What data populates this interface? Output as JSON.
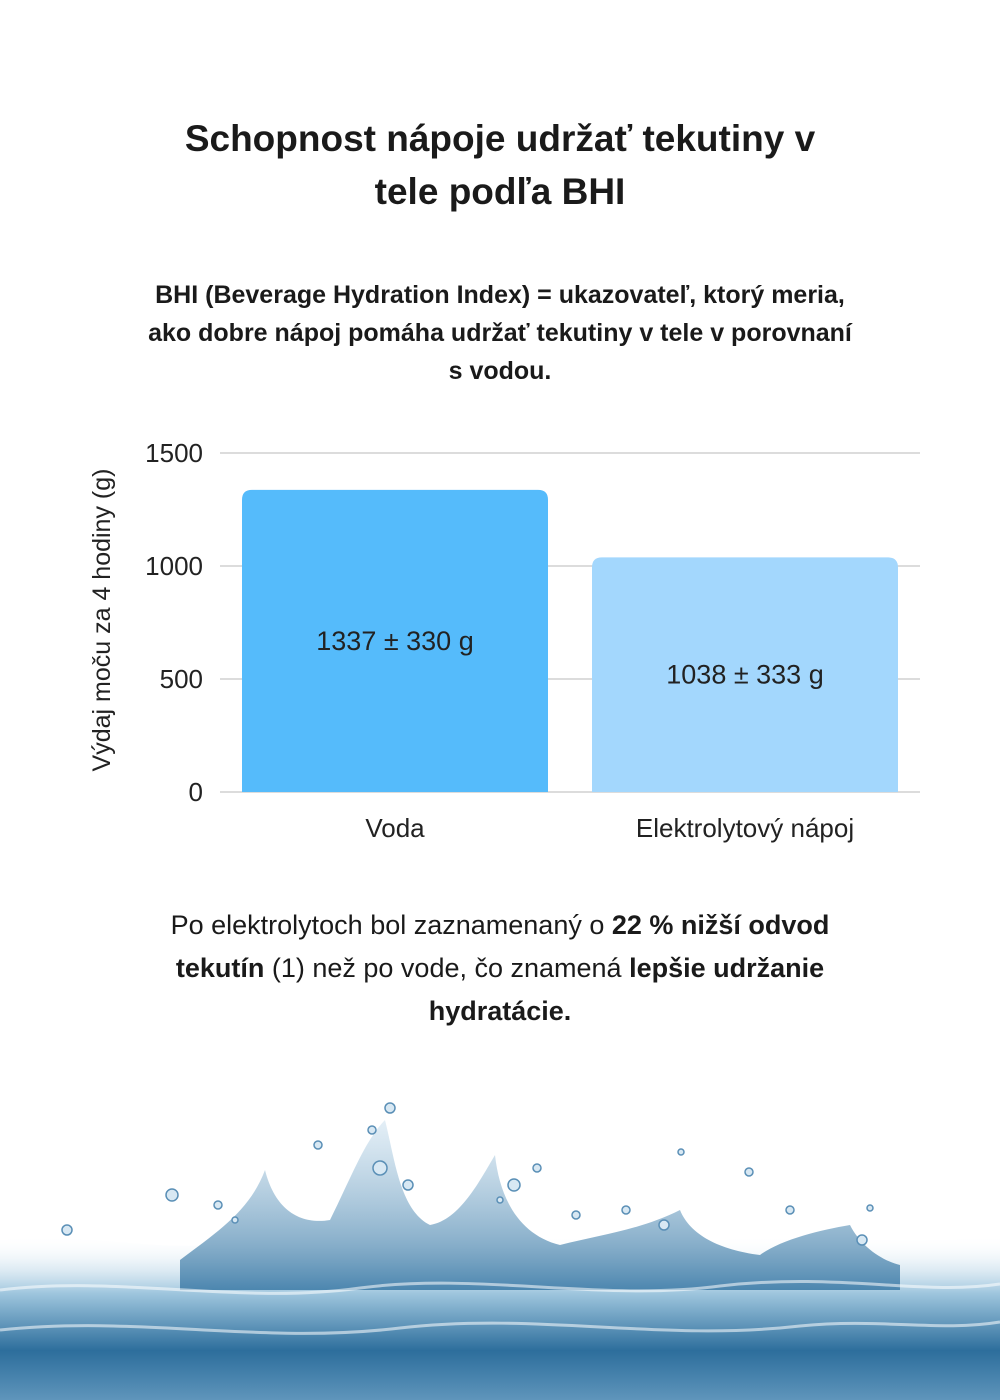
{
  "header": {
    "title_line1": "Schopnost nápoje udržať tekutiny v",
    "title_line2": "tele podľa BHI"
  },
  "definition": {
    "line1": "BHI (Beverage Hydration Index) = ukazovateľ, ktorý meria,",
    "line2": "ako dobre nápoj pomáha udržať tekutiny v tele v porovnaní",
    "line3": "s vodou."
  },
  "chart_data": {
    "type": "bar",
    "categories": [
      "Voda",
      "Elektrolytový nápoj"
    ],
    "values": [
      1337,
      1038
    ],
    "data_labels": [
      "1337 ± 330 g",
      "1038 ± 333 g"
    ],
    "colors": [
      "#55bbfb",
      "#a3d7fd"
    ],
    "ylabel": "Výdaj moču za 4 hodiny (g)",
    "xlabel": "",
    "ylim": [
      0,
      1500
    ],
    "yticks": [
      0,
      500,
      1000,
      1500
    ],
    "grid": true,
    "legend": "none"
  },
  "conclusion": {
    "part1": "Po elektrolytoch bol zaznamenaný o ",
    "bold1": "22 % nižší odvod",
    "bold2": "tekutín",
    "part2": " (1) než po vode, čo znamená ",
    "bold3": "lepšie udržanie",
    "bold4": "hydratácie."
  },
  "decoration": {
    "image": "water-splash"
  }
}
